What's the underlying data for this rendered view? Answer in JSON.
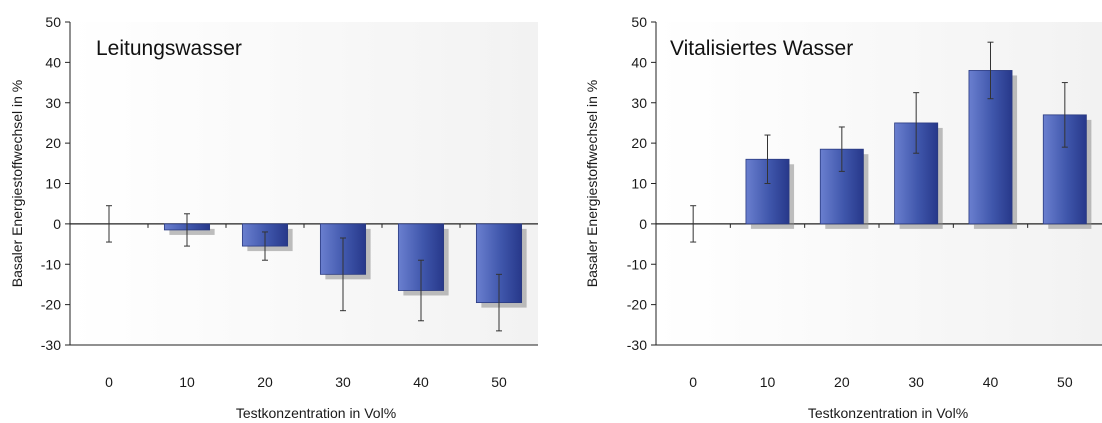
{
  "chart_data": [
    {
      "type": "bar",
      "title": "Leitungswasser",
      "xlabel": "Testkonzentration in Vol%",
      "ylabel": "Basaler Energiestoffwechsel in %",
      "ylim": [
        -30,
        50
      ],
      "yticks": [
        "50",
        "40",
        "30",
        "20",
        "10",
        "0",
        "-10",
        "-20",
        "-30"
      ],
      "categories": [
        "0",
        "10",
        "20",
        "30",
        "40",
        "50"
      ],
      "values": [
        0,
        -1.5,
        -5.5,
        -12.5,
        -16.5,
        -19.5
      ],
      "error": [
        4.5,
        4,
        3.5,
        9,
        7.5,
        7
      ],
      "grid": false,
      "bar_color": "#3a4fa0"
    },
    {
      "type": "bar",
      "title": "Vitalisiertes Wasser",
      "xlabel": "Testkonzentration in Vol%",
      "ylabel": "Basaler Energiestoffwechsel in %",
      "ylim": [
        -30,
        50
      ],
      "yticks": [
        "50",
        "40",
        "30",
        "20",
        "10",
        "0",
        "-10",
        "-20",
        "-30"
      ],
      "categories": [
        "0",
        "10",
        "20",
        "30",
        "40",
        "50"
      ],
      "values": [
        0,
        16,
        18.5,
        25,
        38,
        27
      ],
      "error": [
        4.5,
        6,
        5.5,
        7.5,
        7,
        8
      ],
      "grid": false,
      "bar_color": "#3a4fa0"
    }
  ]
}
